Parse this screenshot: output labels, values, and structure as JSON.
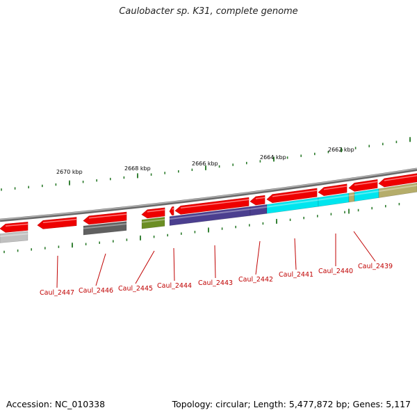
{
  "title": "Caulobacter sp. K31, complete genome",
  "footer": {
    "accession": "Accession: NC_010338",
    "summary": "Topology: circular; Length: 5,477,872 bp; Genes: 5,117"
  },
  "scale_labels": [
    "2670 kbp",
    "2668 kbp",
    "2666 kbp",
    "2664 kbp",
    "2662 kbp"
  ],
  "gene_labels": [
    "Caul_2447",
    "Caul_2446",
    "Caul_2445",
    "Caul_2444",
    "Caul_2443",
    "Caul_2442",
    "Caul_2441",
    "Caul_2440",
    "Caul_2439"
  ],
  "colors": {
    "backbone": "#808080",
    "gene_arrow": "#ee0000",
    "tick": "#2a7a2a",
    "label": "#c00000",
    "cog_gray_light": "#c0c0c0",
    "cog_gray_dark": "#606060",
    "cog_olive": "#6b8e23",
    "cog_purple": "#4b3f8f",
    "cog_cyan": "#00e5ee",
    "cog_khaki": "#b5ad6a"
  }
}
